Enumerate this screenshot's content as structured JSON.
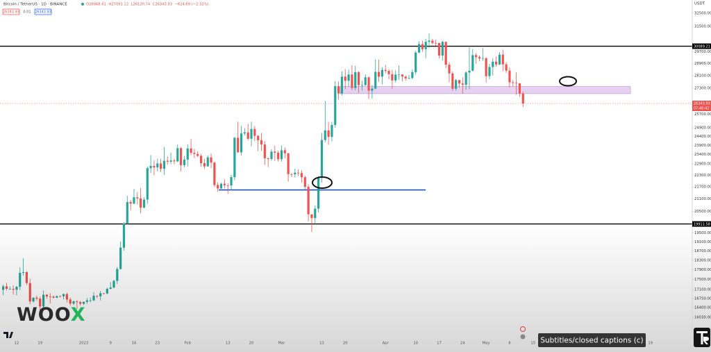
{
  "chart_data": {
    "type": "candlestick",
    "symbol": "Bitcoin / TetherUS · 1D · BINANCE",
    "ohlc_legend": [
      "O26968.61",
      "H27091.12",
      "L26120.74",
      "C26343.93",
      "−624.69 (−2.32%)"
    ],
    "legend_row": [
      "26343.93",
      "0.01",
      "26343.93"
    ],
    "currency": "USDT",
    "up_color": "#26a69a",
    "down_color": "#ef5350",
    "log_scale": true,
    "ylim": [
      15200,
      33500
    ],
    "yticks": [
      {
        "value": 32500,
        "label": "32500.00"
      },
      {
        "value": 31500,
        "label": "31500.00"
      },
      {
        "value": 29700,
        "label": "29700.00"
      },
      {
        "value": 28900,
        "label": "28900.00"
      },
      {
        "value": 28100,
        "label": "28100.00"
      },
      {
        "value": 27300,
        "label": "27300.00"
      },
      {
        "value": 25700,
        "label": "25700.00"
      },
      {
        "value": 24900,
        "label": "24900.00"
      },
      {
        "value": 24400,
        "label": "24400.00"
      },
      {
        "value": 23900,
        "label": "23900.00"
      },
      {
        "value": 23400,
        "label": "23400.00"
      },
      {
        "value": 22900,
        "label": "22900.00"
      },
      {
        "value": 22300,
        "label": "22300.00"
      },
      {
        "value": 21700,
        "label": "21700.00"
      },
      {
        "value": 21100,
        "label": "21100.00"
      },
      {
        "value": 20500,
        "label": "20500.00"
      },
      {
        "value": 19500,
        "label": "19500.00"
      },
      {
        "value": 19100,
        "label": "19100.00"
      },
      {
        "value": 18700,
        "label": "18700.00"
      },
      {
        "value": 18300,
        "label": "18300.00"
      },
      {
        "value": 17900,
        "label": "17900.00"
      },
      {
        "value": 17500,
        "label": "17500.00"
      },
      {
        "value": 17100,
        "label": "17100.00"
      },
      {
        "value": 16750,
        "label": "16750.00"
      },
      {
        "value": 16400,
        "label": "16400.00"
      },
      {
        "value": 16030,
        "label": "16030.00"
      }
    ],
    "hlines": [
      {
        "value": 30089.21,
        "color": "#000000"
      },
      {
        "value": 19911.58,
        "color": "#000000"
      }
    ],
    "lines": [
      {
        "value": 21550,
        "color": "#1a4fd0"
      }
    ],
    "zones": [
      {
        "high": 27400,
        "low": 26950,
        "color": "#dcc3ec"
      }
    ],
    "countdown": "07:40:42",
    "categories": [
      null,
      null,
      null,
      null,
      "12",
      null,
      null,
      null,
      null,
      null,
      null,
      "19",
      null,
      null,
      null,
      null,
      null,
      null,
      null,
      null,
      null,
      null,
      null,
      null,
      "2023",
      null,
      null,
      null,
      null,
      null,
      null,
      null,
      "9",
      null,
      null,
      null,
      null,
      null,
      null,
      "16",
      null,
      null,
      null,
      null,
      null,
      null,
      "23",
      null,
      null,
      null,
      null,
      null,
      null,
      null,
      null,
      "Feb",
      null,
      null,
      null,
      null,
      null,
      null,
      null,
      null,
      null,
      null,
      null,
      "13",
      null,
      null,
      null,
      null,
      null,
      null,
      "20",
      null,
      null,
      null,
      null,
      null,
      null,
      null,
      null,
      "Mar",
      null,
      null,
      null,
      null,
      null,
      null,
      null,
      null,
      null,
      null,
      null,
      "13",
      null,
      null,
      null,
      null,
      null,
      null,
      "20",
      null,
      null,
      null,
      null,
      null,
      null,
      null,
      null,
      null,
      null,
      null,
      "Apr",
      null,
      null,
      null,
      null,
      null,
      null,
      null,
      null,
      "10",
      null,
      null,
      null,
      null,
      null,
      null,
      "17",
      null,
      null,
      null,
      null,
      null,
      null,
      "24",
      null,
      null,
      null,
      null,
      null,
      null,
      "May",
      null,
      null,
      null,
      null,
      null,
      null,
      "8",
      null,
      null,
      null,
      null,
      null,
      null,
      "15",
      null,
      null,
      null,
      null,
      null,
      null,
      null,
      null,
      null,
      null,
      null,
      null,
      null,
      null,
      null,
      null,
      null,
      null,
      null,
      null,
      null,
      null,
      null,
      null,
      null,
      null,
      null,
      null,
      null,
      null,
      null,
      null,
      null,
      null,
      "19"
    ],
    "open": [
      17088,
      17224,
      17128,
      17128,
      17092,
      17208,
      17774,
      17803,
      17356,
      16632,
      16777,
      16738,
      16439,
      16895,
      16824,
      16821,
      16778,
      16837,
      16831,
      16919,
      16707,
      16548,
      16633,
      16607,
      16542,
      16616,
      16673,
      16674,
      16852,
      16831,
      16950,
      16943,
      17127,
      17179,
      17446,
      17934,
      18846,
      19930,
      20954,
      20872,
      21185,
      21133,
      20677,
      21071,
      22667,
      22784,
      22707,
      22917,
      22633,
      23060,
      23009,
      23074,
      23027,
      23743,
      22826,
      23125,
      23732,
      23488,
      23431,
      23326,
      22933,
      22762,
      23240,
      22963,
      21797,
      21625,
      21862,
      21783,
      21773,
      22200,
      24324,
      23517,
      24569,
      24631,
      24271,
      24827,
      24437,
      24188,
      23947,
      23198,
      23157,
      23554,
      23492,
      23141,
      23629,
      23465,
      22354,
      22346,
      22430,
      22410,
      22197,
      21705,
      20363,
      20187,
      20632,
      22163,
      24197,
      24746,
      24375,
      25055,
      27423,
      26965,
      28038,
      27767,
      28175,
      27307,
      28333,
      27493,
      27494,
      27994,
      27139,
      27268,
      28348,
      28033,
      28478,
      28411,
      28199,
      27790,
      28169,
      28175,
      28044,
      27925,
      27947,
      28333,
      29653,
      30235,
      29884,
      30399,
      30485,
      30318,
      30315,
      29445,
      30397,
      28822,
      28245,
      27262,
      27817,
      27591,
      27515,
      28307,
      28423,
      29473,
      29340,
      29248,
      29268,
      28068,
      28669,
      29026,
      28838,
      29506,
      28848,
      28430,
      27668,
      27628,
      27599,
      26968.61,
      null,
      null,
      null,
      null,
      null,
      null,
      null,
      null,
      null,
      null,
      null,
      null,
      null,
      null,
      null,
      null,
      null,
      null,
      null,
      null,
      null,
      null,
      null,
      null,
      null,
      null,
      null,
      null,
      null,
      null,
      null,
      null,
      null,
      null,
      null,
      null,
      null,
      null
    ],
    "high": [
      17299,
      17365,
      17227,
      17267,
      17241,
      18000,
      18387,
      17846,
      17531,
      16796,
      16867,
      16815,
      17061,
      16915,
      16953,
      16869,
      16868,
      16862,
      16939,
      16972,
      16785,
      16664,
      16677,
      16650,
      16630,
      16760,
      16785,
      16991,
      16873,
      17041,
      16962,
      17176,
      17398,
      17490,
      18015,
      19117,
      19998,
      21258,
      21050,
      21600,
      21438,
      21650,
      21192,
      22755,
      23371,
      23078,
      23180,
      23167,
      23816,
      23290,
      23500,
      23165,
      23950,
      23800,
      23320,
      23960,
      24255,
      23715,
      23587,
      23433,
      23161,
      23351,
      23452,
      23011,
      21939,
      21906,
      22090,
      21890,
      22322,
      24380,
      25250,
      25021,
      24877,
      25121,
      25250,
      25000,
      24480,
      24600,
      24140,
      23221,
      23690,
      23880,
      23600,
      23880,
      23780,
      23476,
      22410,
      22640,
      22603,
      22553,
      22270,
      21834,
      20370,
      20792,
      22250,
      24600,
      26500,
      25250,
      25240,
      27756,
      27725,
      28390,
      28528,
      28500,
      28800,
      28750,
      28400,
      27792,
      28190,
      28050,
      27500,
      29181,
      29170,
      28658,
      28808,
      28522,
      28480,
      28450,
      28776,
      28190,
      28100,
      28150,
      28530,
      29770,
      30423,
      30475,
      30620,
      31000,
      30600,
      30550,
      30320,
      30480,
      30410,
      28990,
      28370,
      27880,
      27820,
      28000,
      28398,
      30000,
      29890,
      29600,
      29450,
      29967,
      29340,
      28880,
      29270,
      29380,
      29680,
      29850,
      29000,
      28660,
      27820,
      28320,
      27620,
      27091.12,
      null,
      null,
      null,
      null,
      null,
      null,
      null,
      null,
      null,
      null,
      null,
      null,
      null,
      null,
      null,
      null,
      null,
      null,
      null,
      null,
      null,
      null,
      null,
      null,
      null,
      null,
      null,
      null,
      null,
      null,
      null,
      null,
      null,
      null,
      null,
      null,
      null,
      null
    ],
    "low": [
      16878,
      17058,
      17092,
      16902,
      16870,
      17075,
      17660,
      17275,
      16527,
      16585,
      16663,
      16256,
      16398,
      16736,
      16559,
      16751,
      16760,
      16786,
      16712,
      16592,
      16465,
      16488,
      16333,
      16470,
      16499,
      16543,
      16605,
      16646,
      16754,
      16674,
      16908,
      16911,
      17103,
      17142,
      17320,
      17910,
      18716,
      19887,
      20551,
      20852,
      20834,
      20407,
      20659,
      20860,
      22422,
      22292,
      22500,
      22462,
      22300,
      22850,
      22883,
      22871,
      22986,
      22500,
      22714,
      22760,
      23363,
      23204,
      23256,
      22745,
      22628,
      22745,
      22665,
      21688,
      21451,
      21599,
      21630,
      21351,
      21532,
      22047,
      23505,
      23339,
      24450,
      24193,
      23845,
      24140,
      23580,
      23600,
      22850,
      22722,
      23066,
      23049,
      23020,
      23021,
      23195,
      21971,
      22200,
      22180,
      22250,
      21927,
      21580,
      20042,
      19549,
      19950,
      20450,
      21918,
      24080,
      23930,
      24125,
      24890,
      26578,
      26830,
      27243,
      27370,
      27156,
      27166,
      27000,
      27150,
      27433,
      26615,
      26630,
      27236,
      27700,
      27530,
      28250,
      27860,
      27260,
      27660,
      27835,
      27720,
      27780,
      27880,
      27860,
      28170,
      29600,
      29700,
      29266,
      29963,
      30200,
      30120,
      29250,
      29100,
      28600,
      27680,
      27125,
      27135,
      27332,
      26970,
      27200,
      27240,
      28380,
      28890,
      29050,
      29080,
      27660,
      27870,
      28120,
      28680,
      28800,
      28390,
      28280,
      27340,
      27380,
      26880,
      26750,
      26120.74,
      null,
      null,
      null,
      null,
      null,
      null,
      null,
      null,
      null,
      null,
      null,
      null,
      null,
      null,
      null,
      null,
      null,
      null,
      null,
      null,
      null,
      null,
      null,
      null,
      null,
      null,
      null,
      null,
      null,
      null,
      null,
      null,
      null,
      null,
      null,
      null,
      null,
      null
    ],
    "close": [
      17224,
      17128,
      17128,
      17092,
      17208,
      17774,
      17803,
      17356,
      16632,
      16777,
      16738,
      16439,
      16895,
      16824,
      16821,
      16778,
      16837,
      16831,
      16919,
      16707,
      16548,
      16633,
      16607,
      16542,
      16616,
      16673,
      16674,
      16852,
      16831,
      16950,
      16943,
      17127,
      17179,
      17446,
      17934,
      18846,
      19930,
      20954,
      20872,
      21185,
      21133,
      20677,
      21071,
      22667,
      22784,
      22707,
      22917,
      22633,
      23060,
      23009,
      23074,
      23027,
      23743,
      22826,
      23125,
      23732,
      23488,
      23431,
      23326,
      22933,
      22762,
      23240,
      22963,
      21797,
      21625,
      21862,
      21783,
      21773,
      22200,
      24324,
      23517,
      24569,
      24631,
      24271,
      24827,
      24437,
      24188,
      23947,
      23198,
      23157,
      23554,
      23492,
      23141,
      23629,
      23465,
      22354,
      22346,
      22430,
      22410,
      22197,
      21705,
      20363,
      20187,
      20632,
      22163,
      24197,
      24746,
      24375,
      25055,
      27423,
      26965,
      28038,
      27767,
      28175,
      27307,
      28333,
      27493,
      27494,
      27994,
      27139,
      27268,
      28348,
      28033,
      28478,
      28411,
      28199,
      27790,
      28169,
      28175,
      28044,
      27925,
      27947,
      28333,
      29653,
      30235,
      29884,
      30399,
      30485,
      30318,
      30315,
      29445,
      30397,
      28822,
      28245,
      27262,
      27817,
      27591,
      27515,
      28307,
      28423,
      29473,
      29340,
      29248,
      29268,
      28068,
      28669,
      29026,
      28838,
      29506,
      28848,
      28430,
      27668,
      27628,
      27599,
      26968.61,
      26343.93,
      null,
      null,
      null,
      null,
      null,
      null,
      null,
      null,
      null,
      null,
      null,
      null,
      null,
      null,
      null,
      null,
      null,
      null,
      null,
      null,
      null,
      null,
      null,
      null,
      null,
      null,
      null,
      null,
      null,
      null,
      null,
      null,
      null,
      null,
      null,
      null,
      null,
      null
    ]
  },
  "ui": {
    "logo": [
      "WOO",
      "X"
    ],
    "captions": "Subtitles/closed captions (c)"
  }
}
